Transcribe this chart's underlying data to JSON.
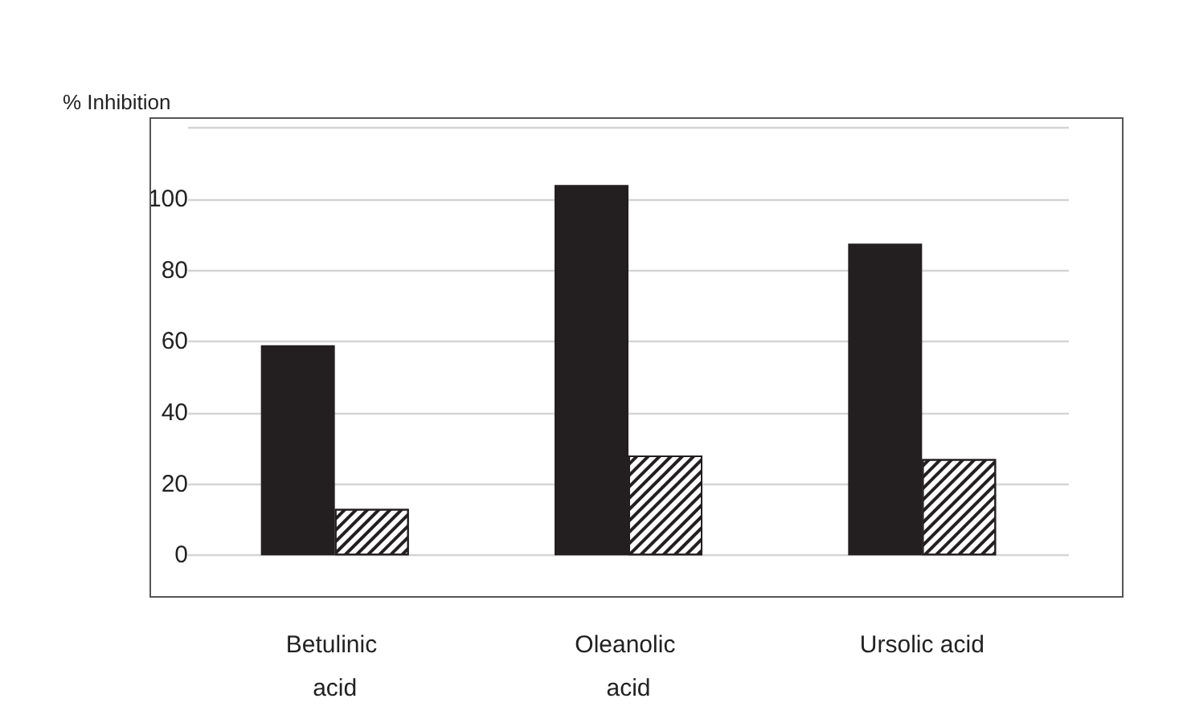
{
  "chart_data": {
    "type": "bar",
    "ylabel": "% Inhibition",
    "categories": [
      "Betulinic acid",
      "Oleanolic acid",
      "Ursolic acid"
    ],
    "series": [
      {
        "color": "#231f20",
        "values": [
          59,
          104,
          87.5
        ]
      },
      {
        "color": "#ffffff",
        "values": [
          13,
          28,
          27
        ]
      }
    ],
    "ylim": [
      -11,
      123
    ],
    "yticks": [
      0,
      20,
      40,
      60,
      80,
      100,
      {
        "value": 120,
        "label": null
      }
    ],
    "grid": "y"
  }
}
